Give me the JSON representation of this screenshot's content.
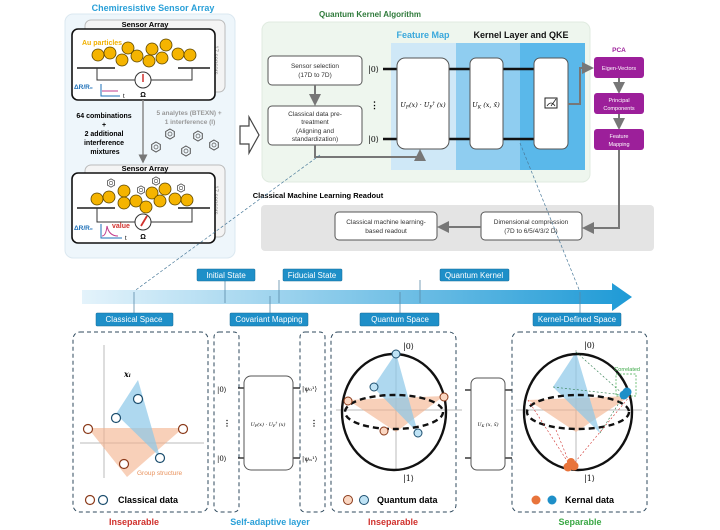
{
  "sensor_panel": {
    "title": "Chemiresistive Sensor Array",
    "top_array": {
      "label": "Sensor Array",
      "particles_label": "Au particles",
      "sensors_count": "17 sensors",
      "axis_label": "ΔR/R₀",
      "time_label": "t",
      "ohm": "Ω"
    },
    "combinations": [
      "64 combinations",
      "+",
      "2 additional",
      "interference",
      "mixtures"
    ],
    "analytes": [
      "5 analytes (BTEXN) +",
      "1 interference (I)"
    ],
    "bottom_array": {
      "label": "Sensor Array",
      "sensors_count": "17 sensors",
      "axis_label": "ΔR/R₀",
      "time_label": "t",
      "value_label": "value",
      "ohm": "Ω"
    }
  },
  "qka": {
    "title": "Quantum Kernel Algorithm",
    "feature_map_title": "Feature Map",
    "kernel_title": "Kernel Layer and QKE",
    "sensor_selection": [
      "Sensor selection",
      "(17D to 7D)"
    ],
    "pretreatment": [
      "Classical data pre-",
      "treatment",
      "(Aligning and",
      "standardization)"
    ],
    "ket0": "|0⟩",
    "vdots": "⋮",
    "uf_gate": {
      "u": "U",
      "sub": "F",
      "mid": "(x) · U",
      "sub2": "F",
      "sup": "†",
      "end": " (x)"
    },
    "uk_gate": {
      "u": "U",
      "sub": "K",
      "end": " (x, x̃)"
    },
    "pca": {
      "title": "PCA",
      "steps": [
        [
          "Eigen-Vectors"
        ],
        [
          "Principal",
          "Components"
        ],
        [
          "Feature",
          "Mapping"
        ]
      ],
      "color": "#9c1f9a"
    }
  },
  "readout": {
    "title": "Classical Machine Learning Readout",
    "ml_box": [
      "Classical machine learning-",
      "based readout"
    ],
    "compression_box": [
      "Dimensional compression",
      "(7D to 6/5/4/3/2 D)"
    ]
  },
  "timeline": {
    "top_tags": [
      "Initial State",
      "Fiducial State",
      "Quantum Kernel"
    ],
    "bottom_tags": [
      "Classical Space",
      "Covariant Mapping",
      "Quantum Space",
      "Kernel-Defined Space"
    ]
  },
  "panels": {
    "classical": {
      "axis_label": "xᵢ",
      "group_label": "Group structure",
      "legend": "Classical data",
      "verdict": "Inseparable"
    },
    "adaptive": {
      "ket_in": "|0⟩",
      "ket_out_top": "|ψ₀¹⟩",
      "ket_out_bottom": "|ψₙ¹⟩",
      "vdots": "⋮",
      "verdict": "Self-adaptive layer"
    },
    "quantum": {
      "ket0": "|0⟩",
      "ket1": "|1⟩",
      "legend": "Quantum data",
      "verdict": "Inseparable"
    },
    "kernel": {
      "ket0": "|0⟩",
      "ket1": "|1⟩",
      "correlated": "Correlated",
      "legend": "Kernal data",
      "verdict": "Separable"
    }
  },
  "colors": {
    "blue": "#1e8fc8",
    "orange": "#e8743b",
    "red": "#d0312d",
    "green": "#3aa845",
    "purple": "#9c1f9a"
  }
}
